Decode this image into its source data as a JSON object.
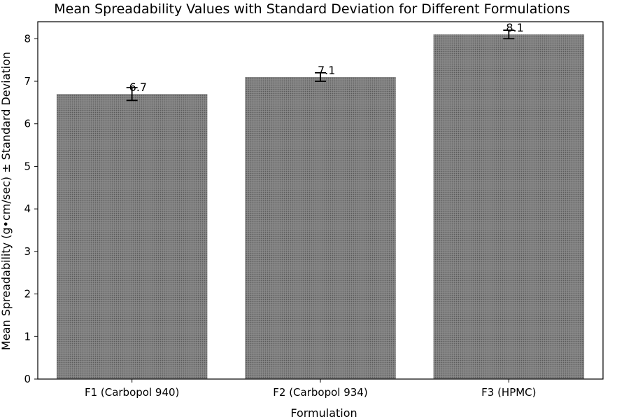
{
  "chart_data": {
    "type": "bar",
    "title": "Mean Spreadability Values with Standard Deviation for Different Formulations",
    "xlabel": "Formulation",
    "ylabel": "Mean Spreadability (g•cm/sec) ± Standard Deviation",
    "categories": [
      "F1 (Carbopol 940)",
      "F2 (Carbopol 934)",
      "F3 (HPMC)"
    ],
    "values": [
      6.7,
      7.1,
      8.1
    ],
    "errors": [
      0.15,
      0.1,
      0.1
    ],
    "data_labels": [
      "6.7",
      "7.1",
      "8.1"
    ],
    "ylim": [
      0,
      8.4
    ],
    "yticks": [
      0,
      1,
      2,
      3,
      4,
      5,
      6,
      7,
      8
    ],
    "grid": false,
    "legend": "none",
    "bar_color": "#828282",
    "bar_hatch_color": "#5a5a5a",
    "error_color": "#000000"
  }
}
